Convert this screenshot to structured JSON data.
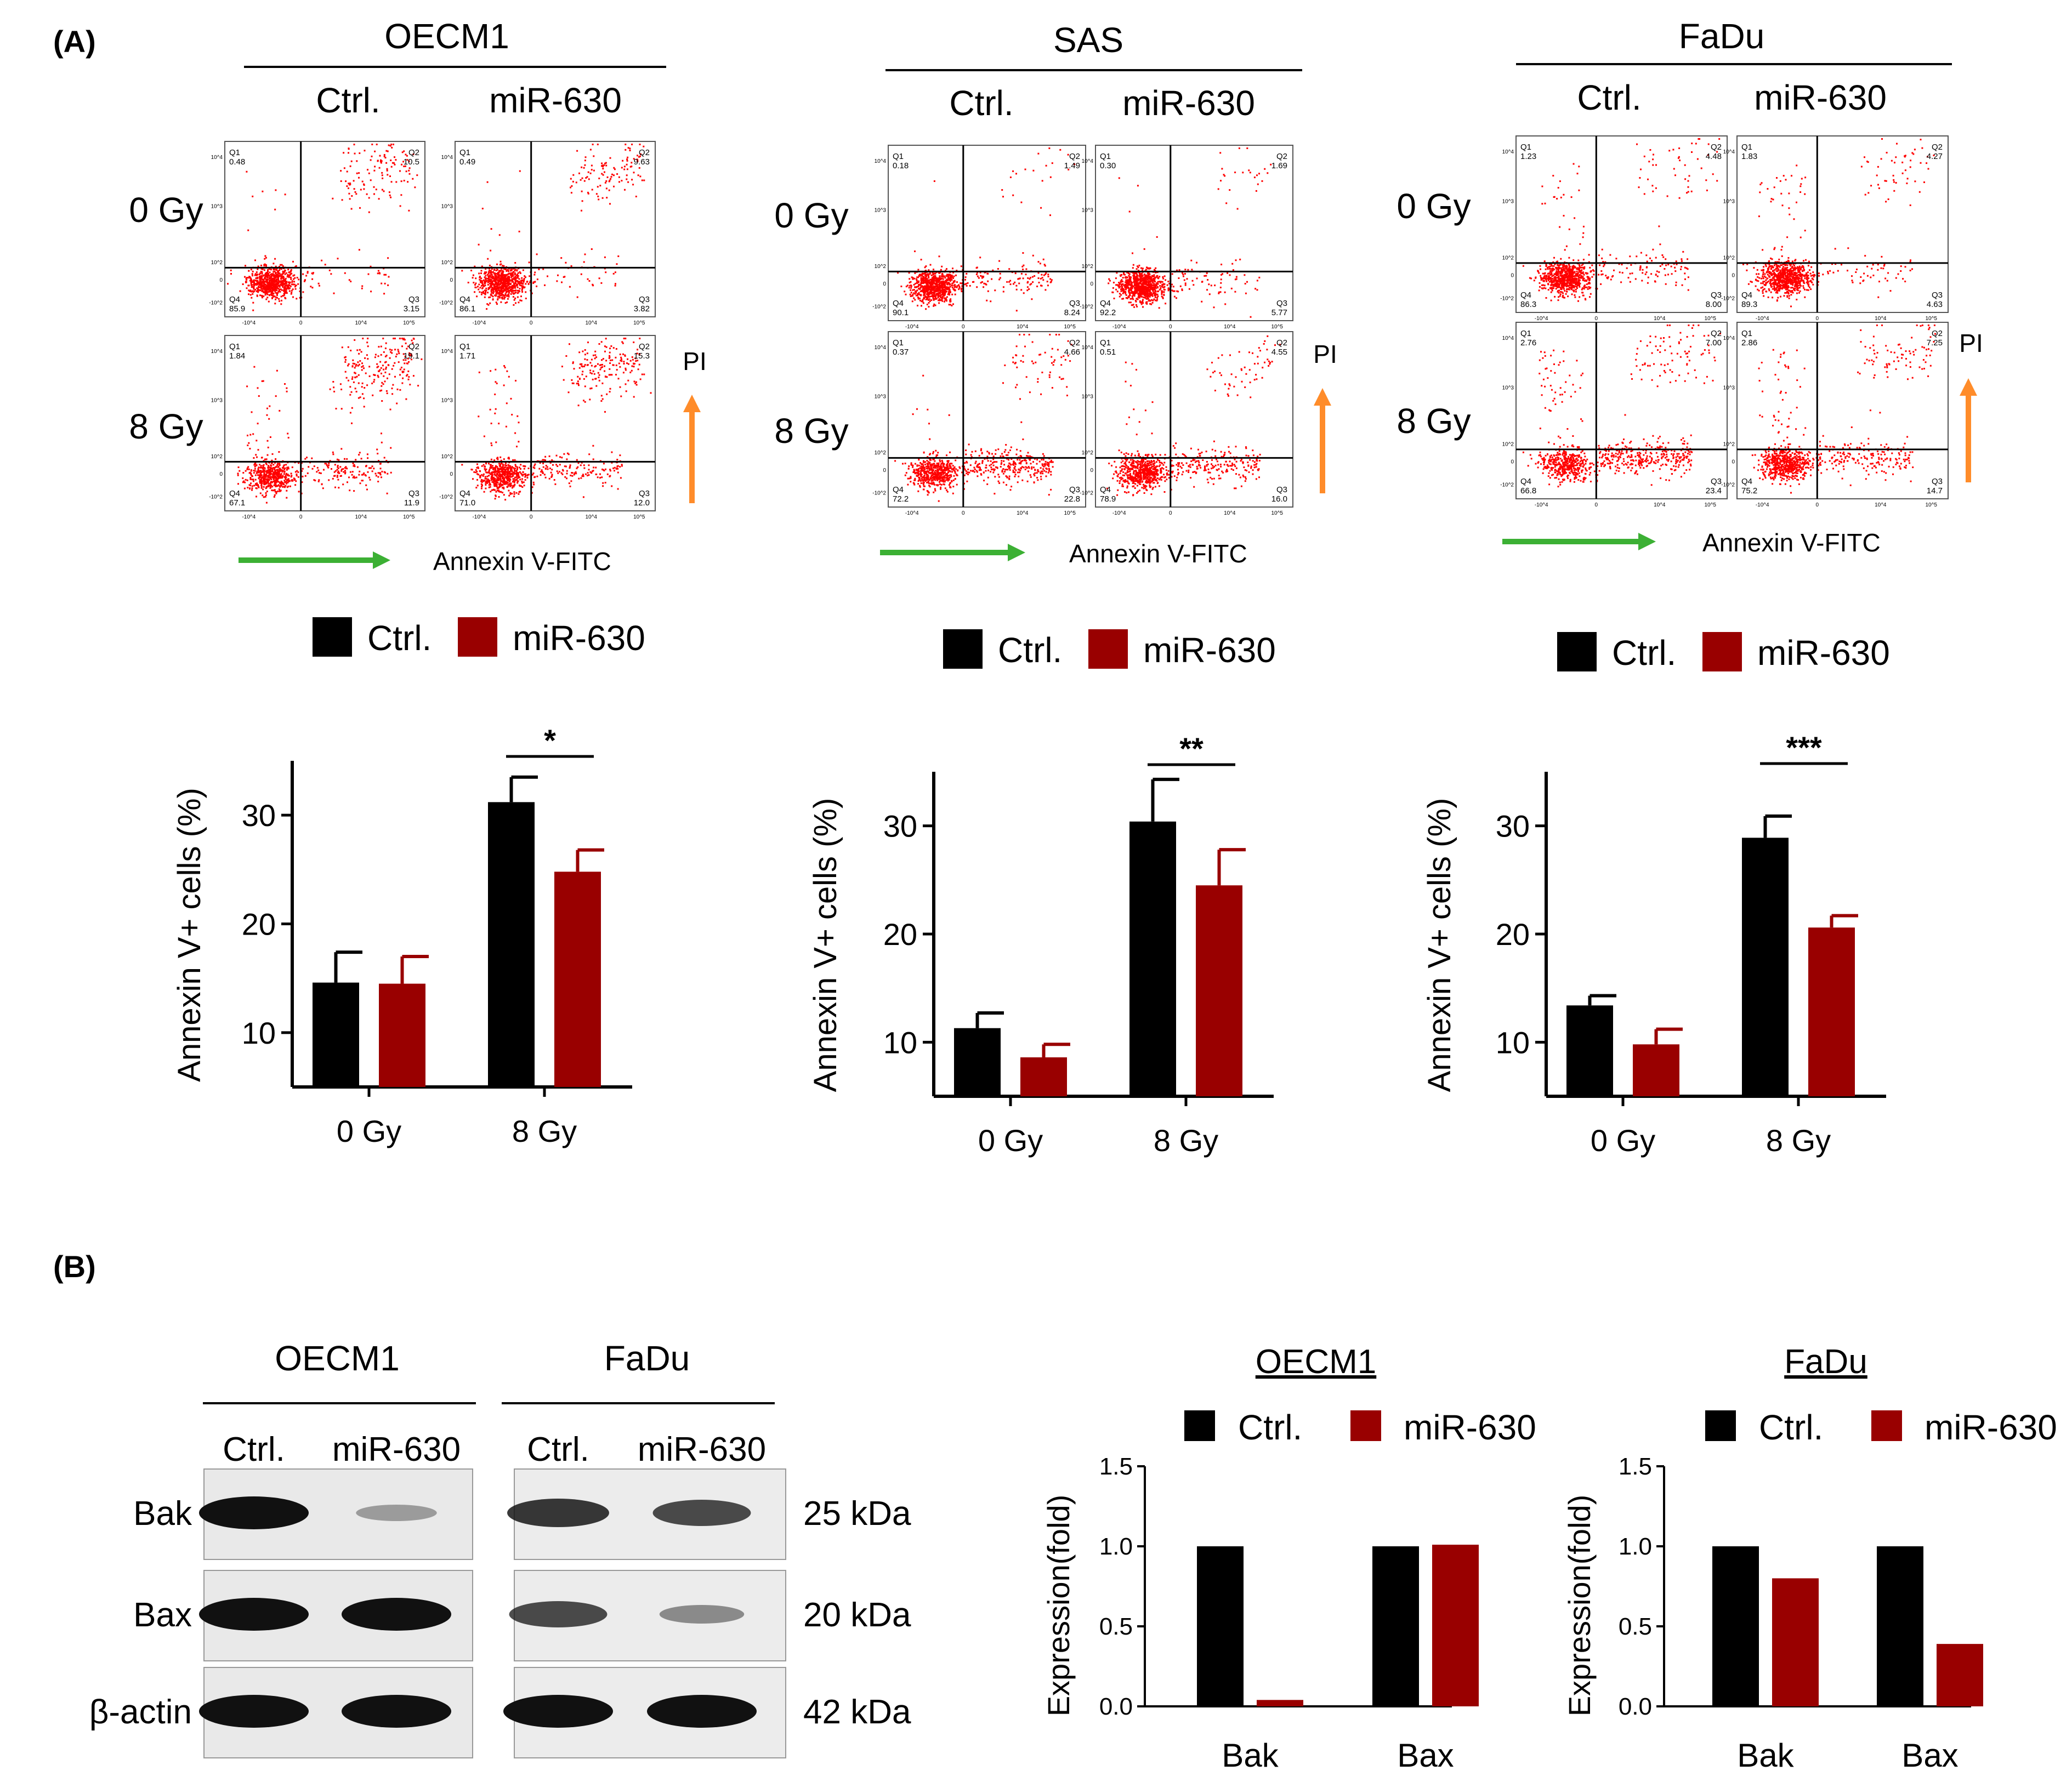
{
  "panel_labels": {
    "a": "(A)",
    "b": "(B)"
  },
  "conditions": {
    "ctrl": "Ctrl.",
    "mir": "miR-630"
  },
  "doses": [
    "0 Gy",
    "8 Gy"
  ],
  "flow_axis": {
    "x_label": "Annexin V-FITC",
    "y_label": "PI"
  },
  "colors": {
    "ctrl": "#000000",
    "mir": "#990000",
    "dots": "#ff0000",
    "arrow_x": "#3cb034",
    "arrow_y": "#ff8c2a"
  },
  "flow_panels": [
    {
      "cell_line": "OECM1",
      "plots": [
        {
          "dose": "0 Gy",
          "condition": "Ctrl.",
          "Q1": "0.48",
          "Q2": "10.5",
          "Q3": "3.15",
          "Q4": "85.9"
        },
        {
          "dose": "0 Gy",
          "condition": "miR-630",
          "Q1": "0.49",
          "Q2": "9.63",
          "Q3": "3.82",
          "Q4": "86.1"
        },
        {
          "dose": "8 Gy",
          "condition": "Ctrl.",
          "Q1": "1.84",
          "Q2": "19.1",
          "Q3": "11.9",
          "Q4": "67.1"
        },
        {
          "dose": "8 Gy",
          "condition": "miR-630",
          "Q1": "1.71",
          "Q2": "15.3",
          "Q3": "12.0",
          "Q4": "71.0"
        }
      ]
    },
    {
      "cell_line": "SAS",
      "plots": [
        {
          "dose": "0 Gy",
          "condition": "Ctrl.",
          "Q1": "0.18",
          "Q2": "1.49",
          "Q3": "8.24",
          "Q4": "90.1"
        },
        {
          "dose": "0 Gy",
          "condition": "miR-630",
          "Q1": "0.30",
          "Q2": "1.69",
          "Q3": "5.77",
          "Q4": "92.2"
        },
        {
          "dose": "8 Gy",
          "condition": "Ctrl.",
          "Q1": "0.37",
          "Q2": "4.66",
          "Q3": "22.8",
          "Q4": "72.2"
        },
        {
          "dose": "8 Gy",
          "condition": "miR-630",
          "Q1": "0.51",
          "Q2": "4.55",
          "Q3": "16.0",
          "Q4": "78.9"
        }
      ]
    },
    {
      "cell_line": "FaDu",
      "plots": [
        {
          "dose": "0 Gy",
          "condition": "Ctrl.",
          "Q1": "1.23",
          "Q2": "4.48",
          "Q3": "8.00",
          "Q4": "86.3"
        },
        {
          "dose": "0 Gy",
          "condition": "miR-630",
          "Q1": "1.83",
          "Q2": "4.27",
          "Q3": "4.63",
          "Q4": "89.3"
        },
        {
          "dose": "8 Gy",
          "condition": "Ctrl.",
          "Q1": "2.76",
          "Q2": "7.00",
          "Q3": "23.4",
          "Q4": "66.8"
        },
        {
          "dose": "8 Gy",
          "condition": "miR-630",
          "Q1": "2.86",
          "Q2": "7.25",
          "Q3": "14.7",
          "Q4": "75.2"
        }
      ]
    }
  ],
  "flow_ticks": {
    "y": [
      "10^4",
      "10^3",
      "10^2",
      "0",
      "-10^2"
    ],
    "x": [
      "-10^4",
      "0",
      "10^4",
      "10^5"
    ]
  },
  "chart_data": [
    {
      "type": "bar",
      "title": "OECM1",
      "categories": [
        "0 Gy",
        "8 Gy"
      ],
      "series": [
        {
          "name": "Ctrl.",
          "values": [
            14.6,
            31.2
          ],
          "errors": [
            2.8,
            2.3
          ]
        },
        {
          "name": "miR-630",
          "values": [
            14.5,
            24.8
          ],
          "errors": [
            2.5,
            2.0
          ]
        }
      ],
      "ylabel": "Annexin V+ cells (%)",
      "yticks": [
        10,
        20,
        30
      ],
      "ylim": [
        5,
        35
      ],
      "significance": {
        "category": "8 Gy",
        "label": "*"
      }
    },
    {
      "type": "bar",
      "title": "SAS",
      "categories": [
        "0 Gy",
        "8 Gy"
      ],
      "series": [
        {
          "name": "Ctrl.",
          "values": [
            11.3,
            30.4
          ],
          "errors": [
            1.4,
            3.9
          ]
        },
        {
          "name": "miR-630",
          "values": [
            8.6,
            24.5
          ],
          "errors": [
            1.2,
            3.3
          ]
        }
      ],
      "ylabel": "Annexin V+ cells (%)",
      "yticks": [
        10,
        20,
        30
      ],
      "ylim": [
        5,
        35
      ],
      "significance": {
        "category": "8 Gy",
        "label": "**"
      }
    },
    {
      "type": "bar",
      "title": "FaDu",
      "categories": [
        "0 Gy",
        "8 Gy"
      ],
      "series": [
        {
          "name": "Ctrl.",
          "values": [
            13.4,
            28.9
          ],
          "errors": [
            0.9,
            2.0
          ]
        },
        {
          "name": "miR-630",
          "values": [
            9.8,
            20.6
          ],
          "errors": [
            1.4,
            1.1
          ]
        }
      ],
      "ylabel": "Annexin V+ cells (%)",
      "yticks": [
        10,
        20,
        30
      ],
      "ylim": [
        5,
        35
      ],
      "significance": {
        "category": "8 Gy",
        "label": "***"
      }
    },
    {
      "type": "bar",
      "title": "OECM1",
      "categories": [
        "Bak",
        "Bax"
      ],
      "series": [
        {
          "name": "Ctrl.",
          "values": [
            1.0,
            1.0
          ]
        },
        {
          "name": "miR-630",
          "values": [
            0.04,
            1.01
          ]
        }
      ],
      "ylabel": "Expression(fold)",
      "yticks": [
        "0.0",
        "0.5",
        "1.0",
        "1.5"
      ],
      "ylim": [
        0,
        1.5
      ]
    },
    {
      "type": "bar",
      "title": "FaDu",
      "categories": [
        "Bak",
        "Bax"
      ],
      "series": [
        {
          "name": "Ctrl.",
          "values": [
            1.0,
            1.0
          ]
        },
        {
          "name": "miR-630",
          "values": [
            0.8,
            0.39
          ]
        }
      ],
      "ylabel": "Expression(fold)",
      "yticks": [
        "0.0",
        "0.5",
        "1.0",
        "1.5"
      ],
      "ylim": [
        0,
        1.5
      ]
    }
  ],
  "western": {
    "groups": [
      "OECM1",
      "FaDu"
    ],
    "lanes": [
      "Ctrl.",
      "miR-630",
      "Ctrl.",
      "miR-630"
    ],
    "rows": [
      {
        "protein": "Bak",
        "kda": "25 kDa",
        "intensity": [
          1.0,
          0.25,
          0.8,
          0.7
        ]
      },
      {
        "protein": "Bax",
        "kda": "20 kDa",
        "intensity": [
          1.0,
          1.0,
          0.7,
          0.35
        ]
      },
      {
        "protein": "β-actin",
        "kda": "42 kDa",
        "intensity": [
          1.0,
          1.0,
          1.0,
          1.0
        ]
      }
    ]
  }
}
